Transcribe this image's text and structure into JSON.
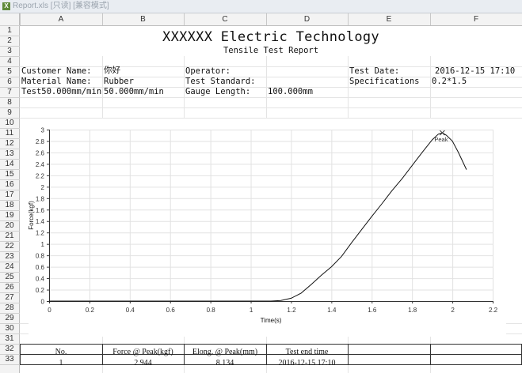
{
  "window": {
    "title": "Report.xls [只读] [兼容模式]",
    "app_icon": "excel-icon"
  },
  "columns": [
    "A",
    "B",
    "C",
    "D",
    "E",
    "F"
  ],
  "rows": [
    "1",
    "2",
    "3",
    "4",
    "5",
    "6",
    "7",
    "8",
    "9",
    "10",
    "11",
    "12",
    "13",
    "14",
    "15",
    "16",
    "17",
    "18",
    "19",
    "20",
    "21",
    "22",
    "23",
    "24",
    "25",
    "26",
    "27",
    "28",
    "29",
    "30",
    "31",
    "32",
    "33"
  ],
  "report": {
    "title": "XXXXXX Electric Technology",
    "subtitle": "Tensile Test Report",
    "customer_label": "Customer Name:",
    "customer_value": "你好",
    "operator_label": "Operator:",
    "test_date_label": "Test Date:",
    "test_date_value": "2016-12-15 17:10",
    "material_label": "Material Name:",
    "material_value": "Rubber",
    "standard_label": "Test Standard:",
    "specifications_label": "Specifications",
    "specifications_value": "0.2*1.5",
    "speed_label": "Test50.000mm/min",
    "speed_value": "50.000mm/min",
    "gauge_label": "Gauge Length:",
    "gauge_value": "100.000mm"
  },
  "results_table": {
    "headers": [
      "No.",
      "Force @ Peak(kgf)",
      "Elong. @ Peak(mm)",
      "Test end time"
    ],
    "rows": [
      [
        "1",
        "2.944",
        "8.134",
        "2016-12-15 17:10"
      ]
    ]
  },
  "chart_data": {
    "type": "line",
    "xlabel": "Time(s)",
    "ylabel": "Force(kgf)",
    "xlim": [
      0,
      2.2
    ],
    "ylim": [
      0,
      3
    ],
    "xticks": [
      "0",
      "0.2",
      "0.4",
      "0.6",
      "0.8",
      "1",
      "1.2",
      "1.4",
      "1.6",
      "1.8",
      "2",
      "2.2"
    ],
    "yticks": [
      "0",
      "0.2",
      "0.4",
      "0.6",
      "0.8",
      "1",
      "1.2",
      "1.4",
      "1.6",
      "1.8",
      "2",
      "2.2",
      "2.4",
      "2.6",
      "2.8",
      "3"
    ],
    "grid": true,
    "line_color": "#111111",
    "peak_label": "Peak",
    "peak": {
      "x": 1.95,
      "y": 2.944
    },
    "series": [
      {
        "x": [
          0,
          1.0,
          1.1,
          1.15,
          1.2,
          1.25,
          1.3,
          1.35,
          1.4,
          1.45,
          1.5,
          1.55,
          1.6,
          1.65,
          1.7,
          1.75,
          1.8,
          1.85,
          1.9,
          1.93,
          1.95,
          1.97,
          2.0,
          2.03,
          2.07
        ],
        "y": [
          0,
          0,
          0.0,
          0.01,
          0.05,
          0.14,
          0.29,
          0.45,
          0.6,
          0.78,
          1.02,
          1.25,
          1.48,
          1.7,
          1.93,
          2.14,
          2.37,
          2.6,
          2.82,
          2.92,
          2.944,
          2.9,
          2.8,
          2.6,
          2.3
        ]
      }
    ]
  }
}
